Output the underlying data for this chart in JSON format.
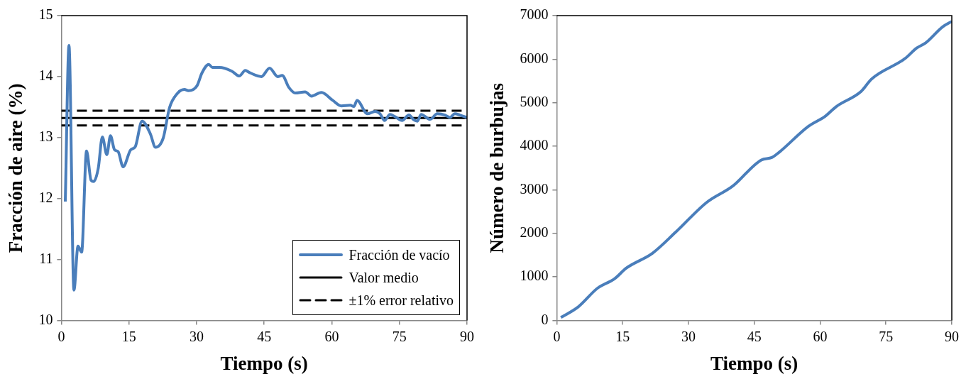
{
  "chart_data": [
    {
      "type": "line",
      "xlabel": "Tiempo (s)",
      "ylabel": "Fracción de aire (%)",
      "xlim": [
        0,
        90
      ],
      "ylim": [
        10,
        15
      ],
      "xticks": [
        0,
        15,
        30,
        45,
        60,
        75,
        90
      ],
      "yticks": [
        10,
        11,
        12,
        13,
        14,
        15
      ],
      "grid": false,
      "legend": "bottom right",
      "marker": "none",
      "line_style": "solid",
      "x": [
        0.88,
        1.7,
        2.8,
        3.7,
        4.5,
        5.6,
        6.6,
        7.2,
        8.2,
        9.1,
        10.1,
        10.9,
        11.8,
        12.6,
        13.7,
        15.4,
        16.4,
        17.9,
        19.7,
        20.9,
        22.6,
        24.0,
        25.7,
        27.3,
        28.2,
        30.1,
        31.2,
        32.7,
        33.5,
        35.1,
        37.8,
        39.5,
        40.8,
        41.9,
        44.4,
        46.2,
        48.0,
        49.0,
        50.5,
        51.9,
        54.1,
        55.5,
        57.7,
        60.2,
        62.1,
        64.1,
        64.9,
        65.6,
        67.9,
        69.6,
        70.7,
        71.7,
        72.9,
        74.1,
        75.6,
        77.1,
        78.2,
        79.0,
        79.8,
        81.8,
        83.4,
        85.1,
        86.2,
        87.3,
        88.4,
        90.0
      ],
      "series": [
        {
          "name": "Fracción de vacío",
          "color": "#4a7ebb",
          "values": [
            11.95,
            14.51,
            10.5,
            11.22,
            11.12,
            12.78,
            12.3,
            12.28,
            12.5,
            13.01,
            12.72,
            13.03,
            12.8,
            12.77,
            12.52,
            12.8,
            12.85,
            13.27,
            13.07,
            12.84,
            12.99,
            13.49,
            13.72,
            13.79,
            13.77,
            13.85,
            14.06,
            14.2,
            14.15,
            14.15,
            14.09,
            14.01,
            14.1,
            14.06,
            14.0,
            14.14,
            14.0,
            14.02,
            13.82,
            13.73,
            13.75,
            13.68,
            13.74,
            13.61,
            13.52,
            13.53,
            13.51,
            13.61,
            13.39,
            13.43,
            13.39,
            13.28,
            13.38,
            13.34,
            13.28,
            13.37,
            13.29,
            13.27,
            13.38,
            13.3,
            13.39,
            13.37,
            13.33,
            13.39,
            13.37,
            13.33
          ]
        }
      ],
      "ref_lines": [
        {
          "axis": "y",
          "value": 13.32,
          "label": "Valor medio",
          "color": "#000000",
          "line_style": "solid"
        },
        {
          "axis": "y",
          "value": 13.44,
          "label": "±1% error relativo",
          "color": "#000000",
          "line_style": "dashed"
        },
        {
          "axis": "y",
          "value": 13.2,
          "label": null,
          "color": "#000000",
          "line_style": "dashed"
        }
      ]
    },
    {
      "type": "line",
      "xlabel": "Tiempo (s)",
      "ylabel": "Número de burbujas",
      "xlim": [
        0,
        90
      ],
      "ylim": [
        0,
        7000
      ],
      "xticks": [
        0,
        15,
        30,
        45,
        60,
        75,
        90
      ],
      "yticks": [
        0,
        1000,
        2000,
        3000,
        4000,
        5000,
        6000,
        7000
      ],
      "grid": false,
      "legend": false,
      "marker": "none",
      "line_style": "solid",
      "x": [
        0.94,
        4.9,
        9.3,
        13.2,
        15.8,
        21.8,
        27.1,
        34.2,
        40.1,
        46.6,
        49.0,
        50.8,
        57.3,
        61.1,
        63.7,
        69.3,
        71.7,
        79.3,
        82.0,
        84.0,
        87.9,
        90.0
      ],
      "series": [
        {
          "color": "#4a7ebb",
          "values": [
            70,
            314,
            743,
            960,
            1200,
            1544,
            2029,
            2715,
            3087,
            3686,
            3743,
            3874,
            4457,
            4685,
            4914,
            5257,
            5543,
            6011,
            6257,
            6370,
            6742,
            6868
          ]
        }
      ]
    }
  ]
}
